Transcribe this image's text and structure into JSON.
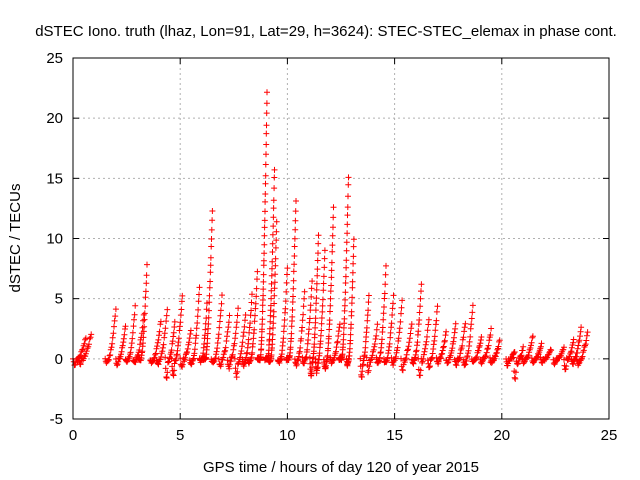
{
  "chart_data": {
    "type": "scatter",
    "title": "dSTEC Iono. truth (lhaz, Lon=91, Lat=29, h=3624): STEC-STEC_elemax in phase cont.",
    "xlabel": "GPS time / hours of day 120 of year 2015",
    "ylabel": "dSTEC  / TECUs",
    "xlim": [
      0,
      25
    ],
    "ylim": [
      -5,
      25
    ],
    "x_ticks": [
      0,
      5,
      10,
      15,
      20,
      25
    ],
    "y_ticks": [
      -5,
      0,
      5,
      10,
      15,
      20,
      25
    ],
    "grid": true,
    "marker": "+",
    "color": "#ff0000",
    "arcs": [
      {
        "start": 0.0,
        "end": 0.6,
        "peak": 1.8,
        "min": -0.5
      },
      {
        "start": 0.25,
        "end": 0.85,
        "peak": 2.1,
        "min": -0.4
      },
      {
        "start": 1.5,
        "end": 2.0,
        "peak": 4.2,
        "min": -0.3
      },
      {
        "start": 2.0,
        "end": 2.45,
        "peak": 2.8,
        "min": -0.5
      },
      {
        "start": 2.45,
        "end": 2.9,
        "peak": 4.3,
        "min": -0.4
      },
      {
        "start": 2.8,
        "end": 3.3,
        "peak": 3.6,
        "min": -0.3
      },
      {
        "start": 3.05,
        "end": 3.45,
        "peak": 7.8,
        "min": 0.0
      },
      {
        "start": 3.6,
        "end": 4.1,
        "peak": 3.2,
        "min": -0.3
      },
      {
        "start": 3.9,
        "end": 4.4,
        "peak": 4.1,
        "min": -0.4
      },
      {
        "start": 4.3,
        "end": 4.75,
        "peak": 3.0,
        "min": -1.8
      },
      {
        "start": 4.6,
        "end": 5.1,
        "peak": 5.3,
        "min": -1.5
      },
      {
        "start": 5.0,
        "end": 5.5,
        "peak": 2.4,
        "min": -0.8
      },
      {
        "start": 5.45,
        "end": 5.9,
        "peak": 6.0,
        "min": -0.5
      },
      {
        "start": 5.9,
        "end": 6.25,
        "peak": 4.6,
        "min": -0.3
      },
      {
        "start": 6.05,
        "end": 6.5,
        "peak": 12.4,
        "min": 0.0
      },
      {
        "start": 6.45,
        "end": 6.95,
        "peak": 5.3,
        "min": -0.4
      },
      {
        "start": 6.8,
        "end": 7.3,
        "peak": 3.5,
        "min": -0.6
      },
      {
        "start": 7.2,
        "end": 7.7,
        "peak": 4.2,
        "min": -0.8
      },
      {
        "start": 7.55,
        "end": 8.05,
        "peak": 3.6,
        "min": -1.6
      },
      {
        "start": 7.9,
        "end": 8.35,
        "peak": 5.3,
        "min": -0.6
      },
      {
        "start": 8.15,
        "end": 8.6,
        "peak": 7.2,
        "min": -0.3
      },
      {
        "start": 8.6,
        "end": 9.05,
        "peak": 22.1,
        "min": 0.0
      },
      {
        "start": 8.95,
        "end": 9.4,
        "peak": 15.8,
        "min": 0.0
      },
      {
        "start": 9.1,
        "end": 9.5,
        "peak": 11.4,
        "min": -0.2
      },
      {
        "start": 9.55,
        "end": 10.0,
        "peak": 7.6,
        "min": -0.3
      },
      {
        "start": 9.95,
        "end": 10.4,
        "peak": 13.2,
        "min": 0.0
      },
      {
        "start": 10.35,
        "end": 10.8,
        "peak": 5.6,
        "min": -0.5
      },
      {
        "start": 10.7,
        "end": 11.15,
        "peak": 6.5,
        "min": -0.4
      },
      {
        "start": 11.05,
        "end": 11.45,
        "peak": 10.3,
        "min": -1.5
      },
      {
        "start": 11.3,
        "end": 11.75,
        "peak": 9.0,
        "min": -1.2
      },
      {
        "start": 11.7,
        "end": 12.15,
        "peak": 12.6,
        "min": -0.8
      },
      {
        "start": 12.0,
        "end": 12.45,
        "peak": 3.0,
        "min": -0.3
      },
      {
        "start": 12.4,
        "end": 12.85,
        "peak": 15.2,
        "min": 0.0
      },
      {
        "start": 12.75,
        "end": 13.1,
        "peak": 10.0,
        "min": -0.5
      },
      {
        "start": 13.4,
        "end": 13.8,
        "peak": 5.2,
        "min": -1.8
      },
      {
        "start": 13.7,
        "end": 14.2,
        "peak": 2.8,
        "min": -1.2
      },
      {
        "start": 14.15,
        "end": 14.6,
        "peak": 7.6,
        "min": -0.3
      },
      {
        "start": 14.5,
        "end": 14.95,
        "peak": 5.3,
        "min": -0.4
      },
      {
        "start": 14.85,
        "end": 15.35,
        "peak": 4.8,
        "min": -0.5
      },
      {
        "start": 15.3,
        "end": 15.8,
        "peak": 3.0,
        "min": -1.0
      },
      {
        "start": 15.8,
        "end": 16.25,
        "peak": 6.2,
        "min": -0.4
      },
      {
        "start": 16.1,
        "end": 16.6,
        "peak": 3.2,
        "min": -1.5
      },
      {
        "start": 16.55,
        "end": 17.0,
        "peak": 4.4,
        "min": -0.8
      },
      {
        "start": 16.95,
        "end": 17.4,
        "peak": 2.2,
        "min": -0.4
      },
      {
        "start": 17.4,
        "end": 17.85,
        "peak": 2.8,
        "min": -0.3
      },
      {
        "start": 17.8,
        "end": 18.3,
        "peak": 3.0,
        "min": -0.5
      },
      {
        "start": 18.2,
        "end": 18.65,
        "peak": 4.5,
        "min": -0.6
      },
      {
        "start": 18.6,
        "end": 19.05,
        "peak": 1.9,
        "min": -0.3
      },
      {
        "start": 19.0,
        "end": 19.5,
        "peak": 2.4,
        "min": -0.4
      },
      {
        "start": 19.45,
        "end": 19.9,
        "peak": 1.5,
        "min": -0.3
      },
      {
        "start": 20.2,
        "end": 20.6,
        "peak": 0.6,
        "min": -0.6
      },
      {
        "start": 20.55,
        "end": 21.0,
        "peak": 0.9,
        "min": -1.9
      },
      {
        "start": 20.95,
        "end": 21.45,
        "peak": 1.9,
        "min": -0.3
      },
      {
        "start": 21.4,
        "end": 21.85,
        "peak": 1.2,
        "min": -0.3
      },
      {
        "start": 21.8,
        "end": 22.3,
        "peak": 0.8,
        "min": -0.3
      },
      {
        "start": 22.4,
        "end": 22.9,
        "peak": 1.0,
        "min": -0.5
      },
      {
        "start": 22.9,
        "end": 23.35,
        "peak": 1.6,
        "min": -1.0
      },
      {
        "start": 23.25,
        "end": 23.7,
        "peak": 2.6,
        "min": -0.4
      },
      {
        "start": 23.5,
        "end": 24.0,
        "peak": 2.2,
        "min": -0.5
      }
    ]
  }
}
